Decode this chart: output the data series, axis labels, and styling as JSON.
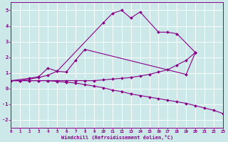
{
  "xlabel": "Windchill (Refroidissement éolien,°C)",
  "background_color": "#cce8e8",
  "grid_color": "#ffffff",
  "line_color": "#880088",
  "marker": "D",
  "markersize": 2.0,
  "linewidth": 0.8,
  "xlim": [
    0,
    23
  ],
  "ylim": [
    -2.5,
    5.5
  ],
  "xticks": [
    0,
    1,
    2,
    3,
    4,
    5,
    6,
    7,
    8,
    9,
    10,
    11,
    12,
    13,
    14,
    15,
    16,
    17,
    18,
    19,
    20,
    21,
    22,
    23
  ],
  "yticks": [
    -2,
    -1,
    0,
    1,
    2,
    3,
    4,
    5
  ],
  "series1_x": [
    0,
    2,
    3,
    4,
    5,
    10,
    11,
    12,
    13,
    14,
    16,
    17,
    18,
    20
  ],
  "series1_y": [
    0.5,
    0.65,
    0.75,
    1.3,
    1.1,
    4.2,
    4.8,
    5.0,
    4.5,
    4.9,
    3.6,
    3.6,
    3.5,
    2.3
  ],
  "series2_x": [
    0,
    1,
    2,
    3,
    4,
    5,
    6,
    7,
    8,
    19,
    20
  ],
  "series2_y": [
    0.5,
    0.5,
    0.6,
    0.7,
    0.85,
    1.1,
    1.05,
    1.8,
    2.5,
    0.9,
    2.3
  ],
  "series3_x": [
    0,
    1,
    2,
    3,
    4,
    5,
    6,
    7,
    8,
    9,
    10,
    11,
    12,
    13,
    14,
    15,
    16,
    17,
    18,
    19,
    20
  ],
  "series3_y": [
    0.5,
    0.5,
    0.5,
    0.5,
    0.5,
    0.5,
    0.5,
    0.5,
    0.5,
    0.5,
    0.55,
    0.6,
    0.65,
    0.7,
    0.8,
    0.9,
    1.05,
    1.2,
    1.5,
    1.8,
    2.3
  ],
  "series4_x": [
    0,
    1,
    2,
    3,
    4,
    5,
    6,
    7,
    8,
    9,
    10,
    11,
    12,
    13,
    14,
    15,
    16,
    17,
    18,
    19,
    20,
    21,
    22,
    23
  ],
  "series4_y": [
    0.5,
    0.5,
    0.5,
    0.5,
    0.5,
    0.45,
    0.4,
    0.35,
    0.25,
    0.15,
    0.05,
    -0.1,
    -0.2,
    -0.35,
    -0.45,
    -0.55,
    -0.65,
    -0.75,
    -0.85,
    -0.95,
    -1.1,
    -1.25,
    -1.4,
    -1.6
  ]
}
